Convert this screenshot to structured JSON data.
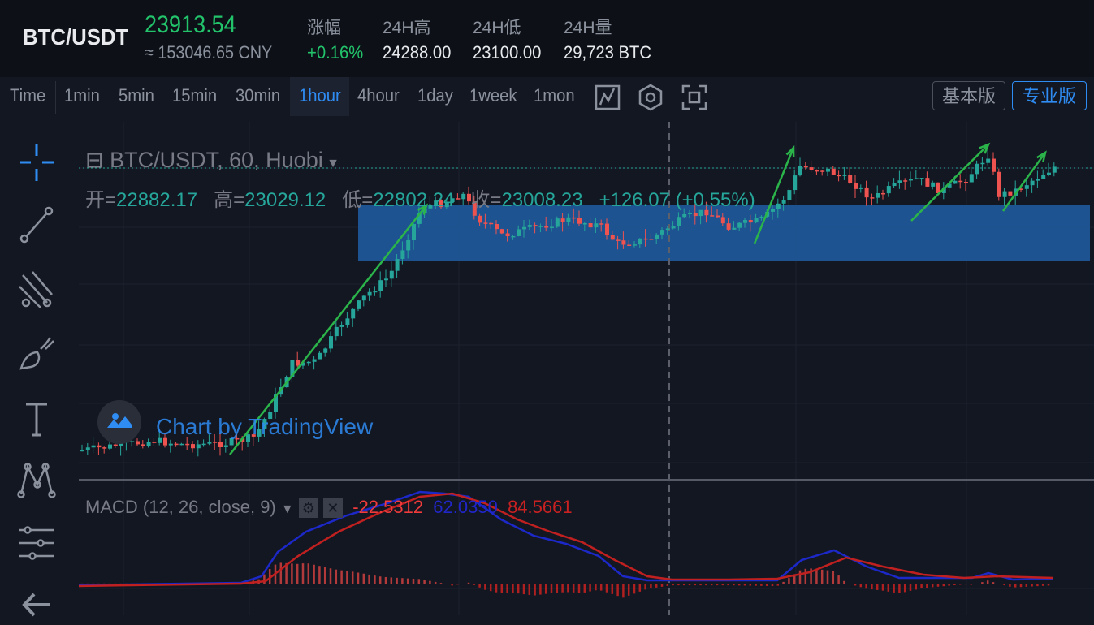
{
  "header": {
    "symbol": "BTC/USDT",
    "price": "23913.54",
    "price_cny": "≈ 153046.65 CNY",
    "stats": [
      {
        "label": "涨幅",
        "value": "+0.16%"
      },
      {
        "label": "24H高",
        "value": "24288.00"
      },
      {
        "label": "24H低",
        "value": "23100.00"
      },
      {
        "label": "24H量",
        "value": "29,723 BTC"
      }
    ]
  },
  "toolbar": {
    "timeframes": [
      "Time",
      "1min",
      "5min",
      "15min",
      "30min",
      "1hour",
      "4hour",
      "1day",
      "1week",
      "1mon"
    ],
    "active_timeframe": "1hour",
    "icons": [
      "indicator-icon",
      "settings-hexagon-icon",
      "fullscreen-icon"
    ],
    "mode_basic": "基本版",
    "mode_pro": "专业版"
  },
  "left_tools": [
    "crosshair-icon",
    "trendline-icon",
    "pitchfork-icon",
    "brush-icon",
    "text-icon",
    "pattern-icon",
    "measure-icon",
    "back-arrow-icon"
  ],
  "legend": {
    "title": "BTC/USDT, 60, Huobi",
    "open_label": "开=",
    "open": "22882.17",
    "high_label": "高=",
    "high": "23029.12",
    "low_label": "低=",
    "low": "22802.24",
    "close_label": "收=",
    "close": "23008.23",
    "change": "+126.07 (+0.55%)"
  },
  "macd": {
    "label": "MACD (12, 26, close, 9)",
    "hist": "-22.5312",
    "macd_val": "62.0350",
    "signal": "84.5661"
  },
  "watermark": "Chart by TradingView",
  "colors": {
    "up": "#26a69a",
    "down": "#ef5350",
    "accent": "#2f8cf3",
    "zone": "#1e5a9c",
    "annotation": "#2bb44a"
  }
}
